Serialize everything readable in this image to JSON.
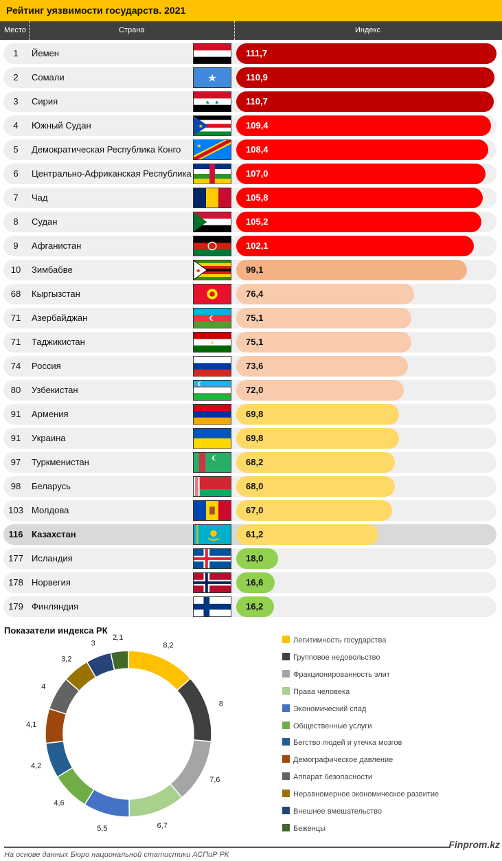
{
  "title": "Рейтинг уязвимости государств. 2021",
  "header": {
    "rank": "Место",
    "country": "Страна",
    "index": "Индекс"
  },
  "colors": {
    "top": "#c00000",
    "high": "#ff0000",
    "mid": "#f4b183",
    "light": "#f8cbad",
    "yellow": "#ffd966",
    "green": "#92d050"
  },
  "rows": [
    {
      "rank": "1",
      "country": "Йемен",
      "value": "111,7",
      "v": 111.7,
      "tier": "top",
      "flag": "yemen-flag"
    },
    {
      "rank": "2",
      "country": "Сомали",
      "value": "110,9",
      "v": 110.9,
      "tier": "top",
      "flag": "somalia-flag"
    },
    {
      "rank": "3",
      "country": "Сирия",
      "value": "110,7",
      "v": 110.7,
      "tier": "top",
      "flag": "syria-flag"
    },
    {
      "rank": "4",
      "country": "Южный Судан",
      "value": "109,4",
      "v": 109.4,
      "tier": "high",
      "flag": "south-sudan-flag"
    },
    {
      "rank": "5",
      "country": "Демократическая Республика Конго",
      "value": "108,4",
      "v": 108.4,
      "tier": "high",
      "flag": "drc-flag"
    },
    {
      "rank": "6",
      "country": "Центрально-Африканская Республика",
      "value": "107,0",
      "v": 107.0,
      "tier": "high",
      "flag": "car-flag"
    },
    {
      "rank": "7",
      "country": "Чад",
      "value": "105,8",
      "v": 105.8,
      "tier": "high",
      "flag": "chad-flag"
    },
    {
      "rank": "8",
      "country": "Судан",
      "value": "105,2",
      "v": 105.2,
      "tier": "high",
      "flag": "sudan-flag"
    },
    {
      "rank": "9",
      "country": "Афганистан",
      "value": "102,1",
      "v": 102.1,
      "tier": "high",
      "flag": "afghanistan-flag"
    },
    {
      "rank": "10",
      "country": "Зимбабве",
      "value": "99,1",
      "v": 99.1,
      "tier": "mid",
      "flag": "zimbabwe-flag"
    },
    {
      "rank": "68",
      "country": "Кыргызстан",
      "value": "76,4",
      "v": 76.4,
      "tier": "light",
      "flag": "kyrgyzstan-flag"
    },
    {
      "rank": "71",
      "country": "Азербайджан",
      "value": "75,1",
      "v": 75.1,
      "tier": "light",
      "flag": "azerbaijan-flag"
    },
    {
      "rank": "71",
      "country": "Таджикистан",
      "value": "75,1",
      "v": 75.1,
      "tier": "light",
      "flag": "tajikistan-flag"
    },
    {
      "rank": "74",
      "country": "Россия",
      "value": "73,6",
      "v": 73.6,
      "tier": "light",
      "flag": "russia-flag"
    },
    {
      "rank": "80",
      "country": "Узбекистан",
      "value": "72,0",
      "v": 72.0,
      "tier": "light",
      "flag": "uzbekistan-flag"
    },
    {
      "rank": "91",
      "country": "Армения",
      "value": "69,8",
      "v": 69.8,
      "tier": "yellow",
      "flag": "armenia-flag"
    },
    {
      "rank": "91",
      "country": "Украина",
      "value": "69,8",
      "v": 69.8,
      "tier": "yellow",
      "flag": "ukraine-flag"
    },
    {
      "rank": "97",
      "country": "Туркменистан",
      "value": "68,2",
      "v": 68.2,
      "tier": "yellow",
      "flag": "turkmenistan-flag"
    },
    {
      "rank": "98",
      "country": "Беларусь",
      "value": "68,0",
      "v": 68.0,
      "tier": "yellow",
      "flag": "belarus-flag"
    },
    {
      "rank": "103",
      "country": "Молдова",
      "value": "67,0",
      "v": 67.0,
      "tier": "yellow",
      "flag": "moldova-flag"
    },
    {
      "rank": "116",
      "country": "Казахстан",
      "value": "61,2",
      "v": 61.2,
      "tier": "yellow",
      "flag": "kazakhstan-flag",
      "highlight": true
    },
    {
      "rank": "177",
      "country": "Исландия",
      "value": "18,0",
      "v": 18.0,
      "tier": "green",
      "flag": "iceland-flag"
    },
    {
      "rank": "178",
      "country": "Норвегия",
      "value": "16,6",
      "v": 16.6,
      "tier": "green",
      "flag": "norway-flag"
    },
    {
      "rank": "179",
      "country": "Финляндия",
      "value": "16,2",
      "v": 16.2,
      "tier": "green",
      "flag": "finland-flag"
    }
  ],
  "chart_data": {
    "type": "pie",
    "title": "Показатели индекса РК",
    "legend_position": "right",
    "categories": [
      "Легитимность государства",
      "Групповое недовольство",
      "Фракционированность элит",
      "Права человека",
      "Экономический спад",
      "Общественные услуги",
      "Бегство людей и утечка мозгов",
      "Демографическое давление",
      "Аппарат безопасности",
      "Неравномерное экономическое развитие",
      "Внешнее вмешательство",
      "Беженцы"
    ],
    "values": [
      8.2,
      8,
      7.6,
      6.7,
      5.5,
      4.6,
      4.2,
      4.1,
      4,
      3.2,
      3,
      2.1
    ],
    "labels": [
      "8,2",
      "8",
      "7,6",
      "6,7",
      "5,5",
      "4,6",
      "4,2",
      "4,1",
      "4",
      "3,2",
      "3",
      "2,1"
    ],
    "colors": [
      "#ffc000",
      "#404040",
      "#a5a5a5",
      "#a9d18e",
      "#4472c4",
      "#70ad47",
      "#255e91",
      "#9e480e",
      "#636363",
      "#997300",
      "#264478",
      "#43682b"
    ]
  },
  "footer": {
    "brand": "Finprom.kz",
    "source": "На основе данных Бюро национальной статистики АСПиР РК"
  }
}
